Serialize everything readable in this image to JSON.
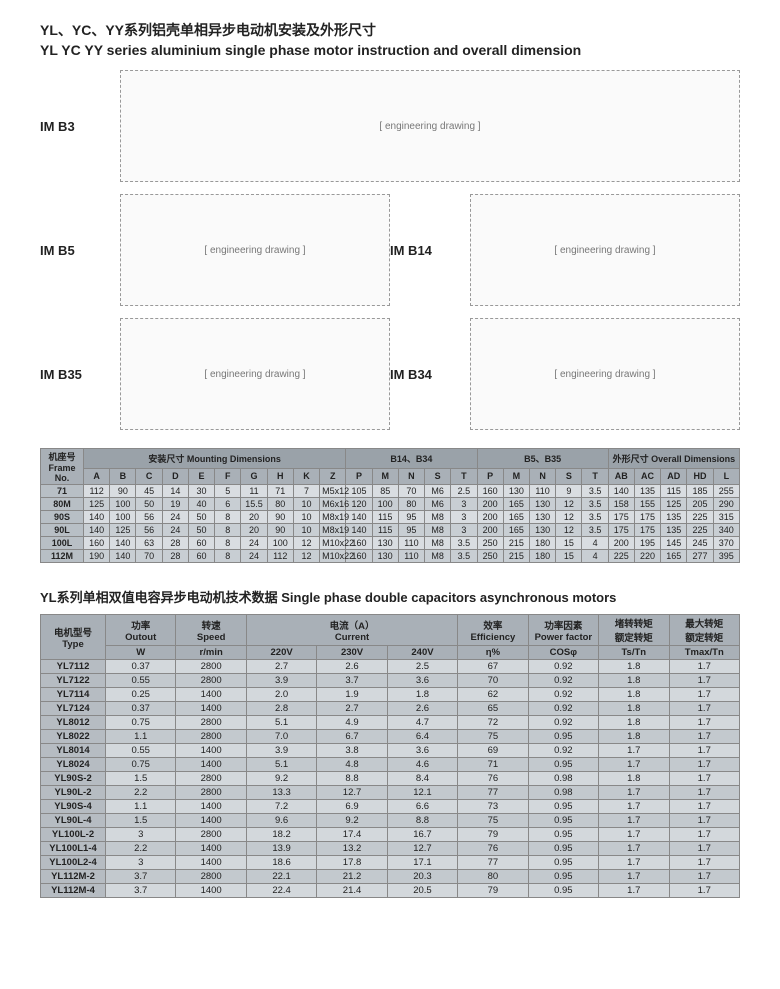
{
  "header": {
    "title_cn": "YL、YC、YY系列铝壳单相异步电动机安装及外形尺寸",
    "title_en": "YL YC YY series aluminium single phase motor instruction and overall dimension"
  },
  "diagram_labels": [
    "IM B3",
    "IM B5",
    "IM B14",
    "IM B35",
    "IM B34"
  ],
  "diagram_placeholder_text": "[ engineering drawing ]",
  "table1": {
    "frame_label_cn": "机座号",
    "frame_label_en": "Frame No.",
    "group_mounting_cn": "安装尺寸 Mounting Dimensions",
    "group_b14": "B14、B34",
    "group_b5": "B5、B35",
    "group_overall": "外形尺寸 Overall Dimensions",
    "mounting_cols": [
      "A",
      "B",
      "C",
      "D",
      "E",
      "F",
      "G",
      "H",
      "K",
      "Z"
    ],
    "flange_cols": [
      "P",
      "M",
      "N",
      "S",
      "T"
    ],
    "overall_cols": [
      "AB",
      "AC",
      "AD",
      "HD",
      "L"
    ],
    "rows": [
      {
        "f": "71",
        "m": [
          "112",
          "90",
          "45",
          "14",
          "30",
          "5",
          "11",
          "71",
          "7",
          "M5x12"
        ],
        "b14": [
          "105",
          "85",
          "70",
          "M6",
          "2.5"
        ],
        "b5": [
          "160",
          "130",
          "110",
          "9",
          "3.5"
        ],
        "o": [
          "140",
          "135",
          "115",
          "185",
          "255"
        ]
      },
      {
        "f": "80M",
        "m": [
          "125",
          "100",
          "50",
          "19",
          "40",
          "6",
          "15.5",
          "80",
          "10",
          "M6x16"
        ],
        "b14": [
          "120",
          "100",
          "80",
          "M6",
          "3"
        ],
        "b5": [
          "200",
          "165",
          "130",
          "12",
          "3.5"
        ],
        "o": [
          "158",
          "155",
          "125",
          "205",
          "290"
        ]
      },
      {
        "f": "90S",
        "m": [
          "140",
          "100",
          "56",
          "24",
          "50",
          "8",
          "20",
          "90",
          "10",
          "M8x19"
        ],
        "b14": [
          "140",
          "115",
          "95",
          "M8",
          "3"
        ],
        "b5": [
          "200",
          "165",
          "130",
          "12",
          "3.5"
        ],
        "o": [
          "175",
          "175",
          "135",
          "225",
          "315"
        ]
      },
      {
        "f": "90L",
        "m": [
          "140",
          "125",
          "56",
          "24",
          "50",
          "8",
          "20",
          "90",
          "10",
          "M8x19"
        ],
        "b14": [
          "140",
          "115",
          "95",
          "M8",
          "3"
        ],
        "b5": [
          "200",
          "165",
          "130",
          "12",
          "3.5"
        ],
        "o": [
          "175",
          "175",
          "135",
          "225",
          "340"
        ]
      },
      {
        "f": "100L",
        "m": [
          "160",
          "140",
          "63",
          "28",
          "60",
          "8",
          "24",
          "100",
          "12",
          "M10x22"
        ],
        "b14": [
          "160",
          "130",
          "110",
          "M8",
          "3.5"
        ],
        "b5": [
          "250",
          "215",
          "180",
          "15",
          "4"
        ],
        "o": [
          "200",
          "195",
          "145",
          "245",
          "370"
        ]
      },
      {
        "f": "112M",
        "m": [
          "190",
          "140",
          "70",
          "28",
          "60",
          "8",
          "24",
          "112",
          "12",
          "M10x22"
        ],
        "b14": [
          "160",
          "130",
          "110",
          "M8",
          "3.5"
        ],
        "b5": [
          "250",
          "215",
          "180",
          "15",
          "4"
        ],
        "o": [
          "225",
          "220",
          "165",
          "277",
          "395"
        ]
      }
    ]
  },
  "section2_title": "YL系列单相双值电容异步电动机技术数据 Single phase double capacitors asynchronous motors",
  "table2": {
    "head_type_cn": "电机型号",
    "head_type_en": "Type",
    "head_output_cn": "功率",
    "head_output_en": "Outout",
    "head_output_unit": "W",
    "head_speed_cn": "转速",
    "head_speed_en": "Speed",
    "head_speed_unit": "r/min",
    "head_current_cn": "电流（A）",
    "head_current_en": "Current",
    "head_current_220": "220V",
    "head_current_230": "230V",
    "head_current_240": "240V",
    "head_eff_cn": "效率",
    "head_eff_en": "Efficiency",
    "head_eff_unit": "η%",
    "head_pf_cn": "功率因素",
    "head_pf_en": "Power factor",
    "head_pf_unit": "COSφ",
    "head_ts_cn": "堵转转矩",
    "head_ts_en": "额定转矩",
    "head_ts_unit": "Ts/Tn",
    "head_tmax_cn": "最大转矩",
    "head_tmax_en": "额定转矩",
    "head_tmax_unit": "Tmax/Tn",
    "rows": [
      {
        "t": "YL7112",
        "w": "0.37",
        "s": "2800",
        "c": [
          "2.7",
          "2.6",
          "2.5"
        ],
        "e": "67",
        "pf": "0.92",
        "ts": "1.8",
        "tm": "1.7"
      },
      {
        "t": "YL7122",
        "w": "0.55",
        "s": "2800",
        "c": [
          "3.9",
          "3.7",
          "3.6"
        ],
        "e": "70",
        "pf": "0.92",
        "ts": "1.8",
        "tm": "1.7"
      },
      {
        "t": "YL7114",
        "w": "0.25",
        "s": "1400",
        "c": [
          "2.0",
          "1.9",
          "1.8"
        ],
        "e": "62",
        "pf": "0.92",
        "ts": "1.8",
        "tm": "1.7"
      },
      {
        "t": "YL7124",
        "w": "0.37",
        "s": "1400",
        "c": [
          "2.8",
          "2.7",
          "2.6"
        ],
        "e": "65",
        "pf": "0.92",
        "ts": "1.8",
        "tm": "1.7"
      },
      {
        "t": "YL8012",
        "w": "0.75",
        "s": "2800",
        "c": [
          "5.1",
          "4.9",
          "4.7"
        ],
        "e": "72",
        "pf": "0.92",
        "ts": "1.8",
        "tm": "1.7"
      },
      {
        "t": "YL8022",
        "w": "1.1",
        "s": "2800",
        "c": [
          "7.0",
          "6.7",
          "6.4"
        ],
        "e": "75",
        "pf": "0.95",
        "ts": "1.8",
        "tm": "1.7"
      },
      {
        "t": "YL8014",
        "w": "0.55",
        "s": "1400",
        "c": [
          "3.9",
          "3.8",
          "3.6"
        ],
        "e": "69",
        "pf": "0.92",
        "ts": "1.7",
        "tm": "1.7"
      },
      {
        "t": "YL8024",
        "w": "0.75",
        "s": "1400",
        "c": [
          "5.1",
          "4.8",
          "4.6"
        ],
        "e": "71",
        "pf": "0.95",
        "ts": "1.7",
        "tm": "1.7"
      },
      {
        "t": "YL90S-2",
        "w": "1.5",
        "s": "2800",
        "c": [
          "9.2",
          "8.8",
          "8.4"
        ],
        "e": "76",
        "pf": "0.98",
        "ts": "1.8",
        "tm": "1.7"
      },
      {
        "t": "YL90L-2",
        "w": "2.2",
        "s": "2800",
        "c": [
          "13.3",
          "12.7",
          "12.1"
        ],
        "e": "77",
        "pf": "0.98",
        "ts": "1.7",
        "tm": "1.7"
      },
      {
        "t": "YL90S-4",
        "w": "1.1",
        "s": "1400",
        "c": [
          "7.2",
          "6.9",
          "6.6"
        ],
        "e": "73",
        "pf": "0.95",
        "ts": "1.7",
        "tm": "1.7"
      },
      {
        "t": "YL90L-4",
        "w": "1.5",
        "s": "1400",
        "c": [
          "9.6",
          "9.2",
          "8.8"
        ],
        "e": "75",
        "pf": "0.95",
        "ts": "1.7",
        "tm": "1.7"
      },
      {
        "t": "YL100L-2",
        "w": "3",
        "s": "2800",
        "c": [
          "18.2",
          "17.4",
          "16.7"
        ],
        "e": "79",
        "pf": "0.95",
        "ts": "1.7",
        "tm": "1.7"
      },
      {
        "t": "YL100L1-4",
        "w": "2.2",
        "s": "1400",
        "c": [
          "13.9",
          "13.2",
          "12.7"
        ],
        "e": "76",
        "pf": "0.95",
        "ts": "1.7",
        "tm": "1.7"
      },
      {
        "t": "YL100L2-4",
        "w": "3",
        "s": "1400",
        "c": [
          "18.6",
          "17.8",
          "17.1"
        ],
        "e": "77",
        "pf": "0.95",
        "ts": "1.7",
        "tm": "1.7"
      },
      {
        "t": "YL112M-2",
        "w": "3.7",
        "s": "2800",
        "c": [
          "22.1",
          "21.2",
          "20.3"
        ],
        "e": "80",
        "pf": "0.95",
        "ts": "1.7",
        "tm": "1.7"
      },
      {
        "t": "YL112M-4",
        "w": "3.7",
        "s": "1400",
        "c": [
          "22.4",
          "21.4",
          "20.5"
        ],
        "e": "79",
        "pf": "0.95",
        "ts": "1.7",
        "tm": "1.7"
      }
    ]
  }
}
